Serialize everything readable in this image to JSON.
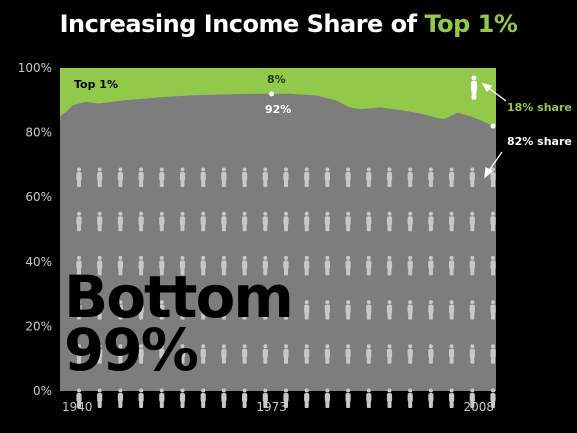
{
  "title_main": "Increasing Income Share of ",
  "title_accent": "Top 1%",
  "colors": {
    "top": "#93c94a",
    "bottom": "#7d7d7d",
    "figure": "#c8c8c8",
    "background": "#000000",
    "text": "#ffffff",
    "bottom_label": "#000000"
  },
  "chart_data": {
    "type": "area",
    "title": "Increasing Income Share of Top 1%",
    "xlabel": "",
    "ylabel": "",
    "x_ticks": [
      "1940",
      "1973",
      "2008"
    ],
    "y_ticks": [
      "0%",
      "20%",
      "40%",
      "60%",
      "80%",
      "100%"
    ],
    "xlim": [
      1940,
      2008
    ],
    "ylim": [
      0,
      100
    ],
    "series": [
      {
        "name": "Bottom 99%",
        "x": [
          1940,
          1941,
          1942,
          1944,
          1946,
          1948,
          1950,
          1953,
          1956,
          1960,
          1965,
          1970,
          1973,
          1976,
          1980,
          1983,
          1985,
          1986,
          1987,
          1990,
          1993,
          1996,
          1999,
          2000,
          2002,
          2004,
          2006,
          2007,
          2008
        ],
        "values": [
          85,
          86.5,
          88.5,
          89.5,
          89,
          89.5,
          90,
          90.5,
          91,
          91.5,
          91.8,
          92,
          92,
          92,
          91.5,
          90,
          88,
          87.5,
          87.3,
          87.8,
          87,
          86,
          84.5,
          84.2,
          86.2,
          85,
          83.5,
          82.5,
          82
        ]
      }
    ],
    "annotations": [
      {
        "text": "Top 1%",
        "region": "top-band-left"
      },
      {
        "text": "8%",
        "x": 1973,
        "series": "Top 1%"
      },
      {
        "text": "92%",
        "x": 1973,
        "series": "Bottom 99%"
      },
      {
        "text": "18% share",
        "x": 2008,
        "series": "Top 1%"
      },
      {
        "text": "82% share",
        "x": 2008,
        "series": "Bottom 99%"
      }
    ],
    "region_labels": {
      "top": "Top 1%",
      "bottom_line1": "Bottom",
      "bottom_line2": "99%"
    },
    "grid": false,
    "legend": "none"
  }
}
